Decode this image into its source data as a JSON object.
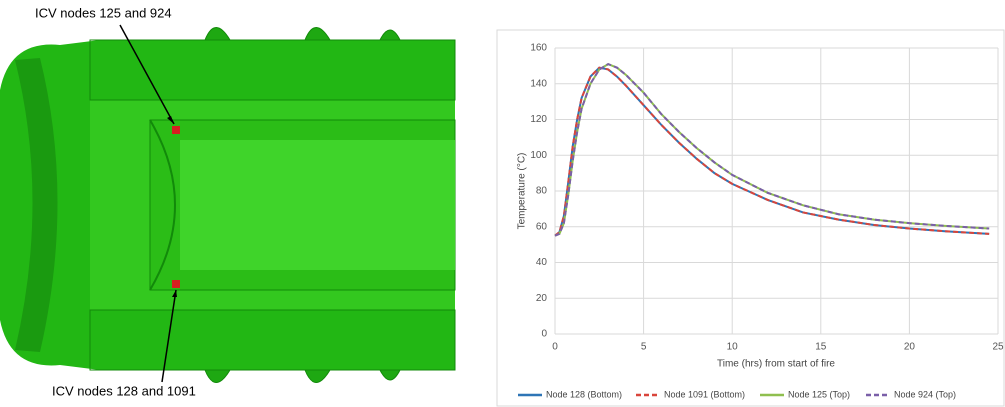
{
  "figure": {
    "annotations": [
      "ICV nodes 125 and 924",
      "ICV nodes 128 and 1091"
    ]
  },
  "chart_data": {
    "type": "line",
    "x_label": "Time (hrs) from start of fire",
    "y_label": "Temperature (°C)",
    "x": [
      0,
      0.25,
      0.5,
      0.75,
      1,
      1.25,
      1.5,
      2,
      2.5,
      3,
      3.5,
      4,
      5,
      6,
      7,
      8,
      9,
      10,
      12,
      14,
      16,
      18,
      20,
      22,
      24.5
    ],
    "series": [
      {
        "name": "Node 128 (Bottom)",
        "color": "#2e75b6",
        "style": "solid",
        "values": [
          55,
          57,
          66,
          85,
          105,
          120,
          132,
          144,
          149,
          148,
          144,
          139,
          128,
          117,
          107,
          98,
          90,
          84,
          75,
          68,
          64,
          61,
          59,
          57.5,
          56
        ]
      },
      {
        "name": "Node 1091 (Bottom)",
        "color": "#d9453b",
        "style": "dashed",
        "values": [
          55,
          57,
          66,
          85,
          105,
          120,
          132,
          144,
          149,
          148,
          144,
          139,
          128,
          117,
          107,
          98,
          90,
          84,
          75,
          68,
          64,
          61,
          59,
          57.5,
          56
        ]
      },
      {
        "name": "Node 125 (Top)",
        "color": "#8fbf4f",
        "style": "solid",
        "values": [
          55,
          56,
          62,
          78,
          97,
          113,
          126,
          140,
          148,
          151,
          149,
          145,
          135,
          123,
          113,
          104,
          96,
          89,
          79,
          72,
          67,
          64,
          62,
          60.5,
          59
        ]
      },
      {
        "name": "Node 924 (Top)",
        "color": "#7a5fa8",
        "style": "dashed",
        "values": [
          55,
          56,
          62,
          78,
          97,
          113,
          126,
          140,
          148,
          151,
          149,
          145,
          135,
          123,
          113,
          104,
          96,
          89,
          79,
          72,
          67,
          64,
          62,
          60.5,
          59
        ]
      }
    ],
    "xlim": [
      0,
      25
    ],
    "xticks": [
      0,
      5,
      10,
      15,
      20,
      25
    ],
    "ylim": [
      0,
      160
    ],
    "yticks": [
      0,
      20,
      40,
      60,
      80,
      100,
      120,
      140,
      160
    ],
    "grid": true,
    "legend": "bottom"
  }
}
